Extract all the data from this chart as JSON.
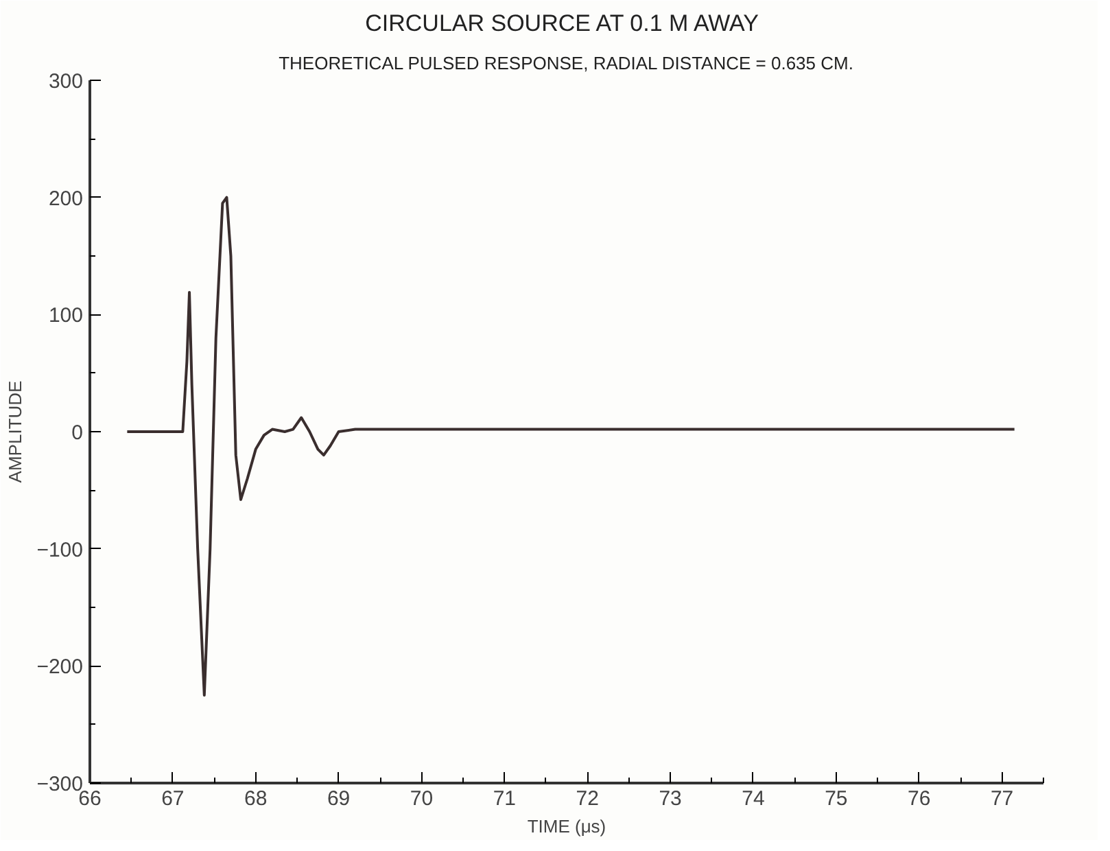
{
  "chart_data": {
    "type": "line",
    "title": "CIRCULAR SOURCE AT 0.1  M AWAY",
    "subtitle": "THEORETICAL PULSED RESPONSE, RADIAL DISTANCE = 0.635 CM.",
    "xlabel": "TIME (μs)",
    "ylabel": "AMPLITUDE",
    "series": [
      {
        "color": "#3a2e2e",
        "x": [
          66.45,
          67.12,
          67.17,
          67.2,
          67.23,
          67.3,
          67.38,
          67.45,
          67.52,
          67.6,
          67.65,
          67.7,
          67.76,
          67.82,
          67.9,
          68.0,
          68.1,
          68.2,
          68.35,
          68.45,
          68.55,
          68.65,
          68.75,
          68.82,
          68.9,
          69.0,
          69.2,
          77.15
        ],
        "values": [
          0,
          0,
          60,
          119,
          40,
          -100,
          -225,
          -100,
          80,
          195,
          200,
          150,
          -20,
          -58,
          -40,
          -15,
          -3,
          2,
          0,
          2,
          12,
          0,
          -15,
          -20,
          -12,
          0,
          2,
          2
        ]
      }
    ],
    "xlim": [
      66,
      77.5
    ],
    "ylim": [
      -300,
      300
    ],
    "xticks": [
      66,
      67,
      68,
      69,
      70,
      71,
      72,
      73,
      74,
      75,
      76,
      77
    ],
    "yticks": [
      -300,
      -200,
      -100,
      0,
      100,
      200,
      300
    ],
    "grid": false
  }
}
